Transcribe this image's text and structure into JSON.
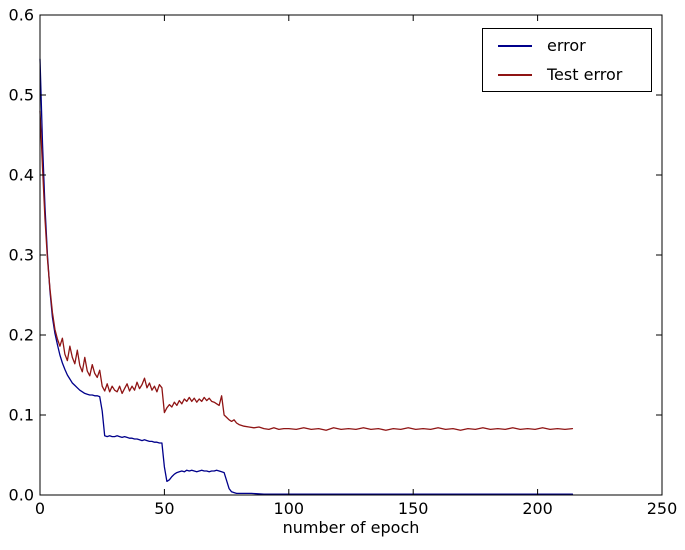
{
  "figure": {
    "background": "#ffffff",
    "frame_color": "#000000"
  },
  "chart_data": {
    "type": "line",
    "title": "",
    "xlabel": "number of epoch",
    "ylabel": "",
    "xlim": [
      0,
      250
    ],
    "ylim": [
      0.0,
      0.6
    ],
    "grid": false,
    "x_ticks": {
      "values": [
        0,
        50,
        100,
        150,
        200,
        250
      ],
      "labels": [
        "0",
        "50",
        "100",
        "150",
        "200",
        "250"
      ]
    },
    "y_ticks": {
      "values": [
        0.0,
        0.1,
        0.2,
        0.3,
        0.4,
        0.5,
        0.6
      ],
      "labels": [
        "0.0",
        "0.1",
        "0.2",
        "0.3",
        "0.4",
        "0.5",
        "0.6"
      ]
    },
    "legend": {
      "position": "upper right",
      "entries": [
        {
          "label": "error",
          "color": "#00008b"
        },
        {
          "label": "Test error",
          "color": "#8f1414"
        }
      ]
    },
    "series": [
      {
        "name": "error",
        "color": "#00008b",
        "points": [
          [
            0,
            0.545
          ],
          [
            1,
            0.44
          ],
          [
            2,
            0.36
          ],
          [
            3,
            0.3
          ],
          [
            4,
            0.255
          ],
          [
            5,
            0.222
          ],
          [
            6,
            0.202
          ],
          [
            7,
            0.188
          ],
          [
            8,
            0.175
          ],
          [
            9,
            0.165
          ],
          [
            10,
            0.157
          ],
          [
            11,
            0.15
          ],
          [
            12,
            0.145
          ],
          [
            13,
            0.14
          ],
          [
            14,
            0.137
          ],
          [
            15,
            0.134
          ],
          [
            16,
            0.131
          ],
          [
            17,
            0.129
          ],
          [
            18,
            0.127
          ],
          [
            19,
            0.126
          ],
          [
            20,
            0.125
          ],
          [
            21,
            0.125
          ],
          [
            22,
            0.124
          ],
          [
            23,
            0.124
          ],
          [
            24,
            0.123
          ],
          [
            25,
            0.105
          ],
          [
            26,
            0.074
          ],
          [
            27,
            0.073
          ],
          [
            28,
            0.074
          ],
          [
            29,
            0.073
          ],
          [
            30,
            0.073
          ],
          [
            31,
            0.074
          ],
          [
            32,
            0.073
          ],
          [
            33,
            0.072
          ],
          [
            34,
            0.073
          ],
          [
            35,
            0.072
          ],
          [
            36,
            0.071
          ],
          [
            37,
            0.071
          ],
          [
            38,
            0.07
          ],
          [
            39,
            0.07
          ],
          [
            40,
            0.069
          ],
          [
            41,
            0.068
          ],
          [
            42,
            0.069
          ],
          [
            43,
            0.068
          ],
          [
            44,
            0.067
          ],
          [
            45,
            0.067
          ],
          [
            46,
            0.066
          ],
          [
            47,
            0.066
          ],
          [
            48,
            0.065
          ],
          [
            49,
            0.065
          ],
          [
            50,
            0.035
          ],
          [
            51,
            0.017
          ],
          [
            52,
            0.019
          ],
          [
            53,
            0.023
          ],
          [
            54,
            0.026
          ],
          [
            55,
            0.028
          ],
          [
            56,
            0.029
          ],
          [
            57,
            0.03
          ],
          [
            58,
            0.029
          ],
          [
            59,
            0.031
          ],
          [
            60,
            0.03
          ],
          [
            61,
            0.031
          ],
          [
            62,
            0.03
          ],
          [
            63,
            0.029
          ],
          [
            64,
            0.03
          ],
          [
            65,
            0.031
          ],
          [
            66,
            0.03
          ],
          [
            67,
            0.03
          ],
          [
            68,
            0.029
          ],
          [
            69,
            0.03
          ],
          [
            70,
            0.03
          ],
          [
            71,
            0.031
          ],
          [
            72,
            0.03
          ],
          [
            73,
            0.029
          ],
          [
            74,
            0.028
          ],
          [
            75,
            0.018
          ],
          [
            76,
            0.008
          ],
          [
            77,
            0.004
          ],
          [
            78,
            0.003
          ],
          [
            79,
            0.002
          ],
          [
            80,
            0.002
          ],
          [
            85,
            0.002
          ],
          [
            90,
            0.001
          ],
          [
            100,
            0.001
          ],
          [
            110,
            0.001
          ],
          [
            120,
            0.001
          ],
          [
            130,
            0.001
          ],
          [
            140,
            0.001
          ],
          [
            150,
            0.001
          ],
          [
            160,
            0.001
          ],
          [
            170,
            0.001
          ],
          [
            180,
            0.001
          ],
          [
            190,
            0.001
          ],
          [
            200,
            0.001
          ],
          [
            207,
            0.001
          ],
          [
            214,
            0.001
          ]
        ]
      },
      {
        "name": "Test error",
        "color": "#8f1414",
        "points": [
          [
            0,
            0.48
          ],
          [
            1,
            0.41
          ],
          [
            2,
            0.345
          ],
          [
            3,
            0.295
          ],
          [
            4,
            0.258
          ],
          [
            5,
            0.228
          ],
          [
            6,
            0.207
          ],
          [
            7,
            0.195
          ],
          [
            8,
            0.186
          ],
          [
            9,
            0.196
          ],
          [
            10,
            0.176
          ],
          [
            11,
            0.168
          ],
          [
            12,
            0.186
          ],
          [
            13,
            0.172
          ],
          [
            14,
            0.164
          ],
          [
            15,
            0.181
          ],
          [
            16,
            0.162
          ],
          [
            17,
            0.154
          ],
          [
            18,
            0.172
          ],
          [
            19,
            0.155
          ],
          [
            20,
            0.149
          ],
          [
            21,
            0.163
          ],
          [
            22,
            0.152
          ],
          [
            23,
            0.147
          ],
          [
            24,
            0.156
          ],
          [
            25,
            0.136
          ],
          [
            26,
            0.13
          ],
          [
            27,
            0.139
          ],
          [
            28,
            0.129
          ],
          [
            29,
            0.136
          ],
          [
            30,
            0.131
          ],
          [
            31,
            0.129
          ],
          [
            32,
            0.136
          ],
          [
            33,
            0.127
          ],
          [
            34,
            0.133
          ],
          [
            35,
            0.139
          ],
          [
            36,
            0.13
          ],
          [
            37,
            0.136
          ],
          [
            38,
            0.131
          ],
          [
            39,
            0.141
          ],
          [
            40,
            0.133
          ],
          [
            41,
            0.138
          ],
          [
            42,
            0.146
          ],
          [
            43,
            0.134
          ],
          [
            44,
            0.14
          ],
          [
            45,
            0.131
          ],
          [
            46,
            0.136
          ],
          [
            47,
            0.129
          ],
          [
            48,
            0.138
          ],
          [
            49,
            0.134
          ],
          [
            50,
            0.103
          ],
          [
            51,
            0.109
          ],
          [
            52,
            0.113
          ],
          [
            53,
            0.11
          ],
          [
            54,
            0.116
          ],
          [
            55,
            0.112
          ],
          [
            56,
            0.118
          ],
          [
            57,
            0.114
          ],
          [
            58,
            0.12
          ],
          [
            59,
            0.117
          ],
          [
            60,
            0.122
          ],
          [
            61,
            0.117
          ],
          [
            62,
            0.121
          ],
          [
            63,
            0.116
          ],
          [
            64,
            0.12
          ],
          [
            65,
            0.117
          ],
          [
            66,
            0.122
          ],
          [
            67,
            0.118
          ],
          [
            68,
            0.121
          ],
          [
            69,
            0.117
          ],
          [
            70,
            0.116
          ],
          [
            71,
            0.114
          ],
          [
            72,
            0.112
          ],
          [
            73,
            0.124
          ],
          [
            74,
            0.1
          ],
          [
            75,
            0.097
          ],
          [
            76,
            0.094
          ],
          [
            77,
            0.092
          ],
          [
            78,
            0.094
          ],
          [
            79,
            0.09
          ],
          [
            80,
            0.088
          ],
          [
            82,
            0.086
          ],
          [
            84,
            0.085
          ],
          [
            86,
            0.084
          ],
          [
            88,
            0.085
          ],
          [
            90,
            0.083
          ],
          [
            92,
            0.082
          ],
          [
            94,
            0.084
          ],
          [
            96,
            0.082
          ],
          [
            98,
            0.083
          ],
          [
            100,
            0.083
          ],
          [
            103,
            0.082
          ],
          [
            106,
            0.084
          ],
          [
            109,
            0.082
          ],
          [
            112,
            0.083
          ],
          [
            115,
            0.081
          ],
          [
            118,
            0.084
          ],
          [
            121,
            0.082
          ],
          [
            124,
            0.083
          ],
          [
            127,
            0.082
          ],
          [
            130,
            0.084
          ],
          [
            133,
            0.082
          ],
          [
            136,
            0.083
          ],
          [
            139,
            0.081
          ],
          [
            142,
            0.083
          ],
          [
            145,
            0.082
          ],
          [
            148,
            0.084
          ],
          [
            151,
            0.082
          ],
          [
            154,
            0.083
          ],
          [
            157,
            0.082
          ],
          [
            160,
            0.084
          ],
          [
            163,
            0.082
          ],
          [
            166,
            0.083
          ],
          [
            169,
            0.081
          ],
          [
            172,
            0.083
          ],
          [
            175,
            0.082
          ],
          [
            178,
            0.084
          ],
          [
            181,
            0.082
          ],
          [
            184,
            0.083
          ],
          [
            187,
            0.082
          ],
          [
            190,
            0.084
          ],
          [
            193,
            0.082
          ],
          [
            196,
            0.083
          ],
          [
            199,
            0.082
          ],
          [
            202,
            0.084
          ],
          [
            205,
            0.082
          ],
          [
            208,
            0.083
          ],
          [
            211,
            0.082
          ],
          [
            214,
            0.083
          ]
        ]
      }
    ]
  }
}
